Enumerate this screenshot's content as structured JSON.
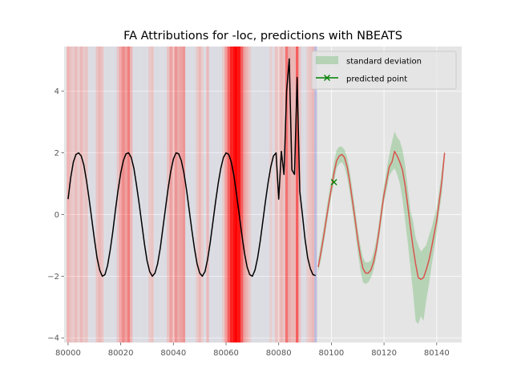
{
  "chart_data": {
    "type": "line",
    "title": "FA Attributions for -loc, predictions with NBEATS",
    "xlabel": "",
    "ylabel": "",
    "xlim": [
      79998.5,
      80149.5
    ],
    "ylim": [
      -4.15,
      5.45
    ],
    "x_ticks": [
      80000,
      80020,
      80040,
      80060,
      80080,
      80100,
      80120,
      80140
    ],
    "x_tick_labels": [
      "80000",
      "80020",
      "80040",
      "80060",
      "80080",
      "80100",
      "80120",
      "80140"
    ],
    "y_ticks": [
      -4,
      -2,
      0,
      2,
      4
    ],
    "y_tick_labels": [
      "−4",
      "−2",
      "0",
      "2",
      "4"
    ],
    "grid": true,
    "legend_position": "top-right",
    "legend": [
      {
        "label": "standard deviation",
        "kind": "patch",
        "color": "#2ca02c"
      },
      {
        "label": "predicted point",
        "kind": "line-marker",
        "color": "#008000"
      }
    ],
    "attribution_bands": [
      {
        "x": 80000,
        "c": "r",
        "a": 0.25
      },
      {
        "x": 80001,
        "c": "r",
        "a": 0.15
      },
      {
        "x": 80002,
        "c": "r",
        "a": 0.12
      },
      {
        "x": 80003,
        "c": "r",
        "a": 0.18
      },
      {
        "x": 80004,
        "c": "r",
        "a": 0.1
      },
      {
        "x": 80005,
        "c": "r",
        "a": 0.2
      },
      {
        "x": 80006,
        "c": "r",
        "a": 0.12
      },
      {
        "x": 80007,
        "c": "r",
        "a": 0.15
      },
      {
        "x": 80008,
        "c": "b",
        "a": 0.05
      },
      {
        "x": 80009,
        "c": "b",
        "a": 0.06
      },
      {
        "x": 80010,
        "c": "b",
        "a": 0.05
      },
      {
        "x": 80011,
        "c": "r",
        "a": 0.15
      },
      {
        "x": 80012,
        "c": "r",
        "a": 0.2
      },
      {
        "x": 80013,
        "c": "r",
        "a": 0.15
      },
      {
        "x": 80014,
        "c": "b",
        "a": 0.05
      },
      {
        "x": 80015,
        "c": "b",
        "a": 0.06
      },
      {
        "x": 80016,
        "c": "b",
        "a": 0.05
      },
      {
        "x": 80017,
        "c": "b",
        "a": 0.05
      },
      {
        "x": 80018,
        "c": "b",
        "a": 0.06
      },
      {
        "x": 80019,
        "c": "r",
        "a": 0.15
      },
      {
        "x": 80020,
        "c": "r",
        "a": 0.3
      },
      {
        "x": 80021,
        "c": "r",
        "a": 0.4
      },
      {
        "x": 80022,
        "c": "r",
        "a": 0.3
      },
      {
        "x": 80023,
        "c": "r",
        "a": 0.45
      },
      {
        "x": 80024,
        "c": "r",
        "a": 0.2
      },
      {
        "x": 80025,
        "c": "b",
        "a": 0.05
      },
      {
        "x": 80026,
        "c": "b",
        "a": 0.06
      },
      {
        "x": 80027,
        "c": "b",
        "a": 0.05
      },
      {
        "x": 80028,
        "c": "b",
        "a": 0.05
      },
      {
        "x": 80029,
        "c": "b",
        "a": 0.06
      },
      {
        "x": 80030,
        "c": "b",
        "a": 0.05
      },
      {
        "x": 80031,
        "c": "r",
        "a": 0.12
      },
      {
        "x": 80032,
        "c": "r",
        "a": 0.15
      },
      {
        "x": 80033,
        "c": "b",
        "a": 0.05
      },
      {
        "x": 80034,
        "c": "b",
        "a": 0.06
      },
      {
        "x": 80035,
        "c": "b",
        "a": 0.05
      },
      {
        "x": 80036,
        "c": "b",
        "a": 0.05
      },
      {
        "x": 80037,
        "c": "b",
        "a": 0.06
      },
      {
        "x": 80038,
        "c": "r",
        "a": 0.15
      },
      {
        "x": 80039,
        "c": "r",
        "a": 0.3
      },
      {
        "x": 80040,
        "c": "r",
        "a": 0.2
      },
      {
        "x": 80041,
        "c": "r",
        "a": 0.35
      },
      {
        "x": 80042,
        "c": "r",
        "a": 0.25
      },
      {
        "x": 80043,
        "c": "r",
        "a": 0.3
      },
      {
        "x": 80044,
        "c": "r",
        "a": 0.35
      },
      {
        "x": 80045,
        "c": "b",
        "a": 0.05
      },
      {
        "x": 80046,
        "c": "b",
        "a": 0.06
      },
      {
        "x": 80047,
        "c": "b",
        "a": 0.05
      },
      {
        "x": 80048,
        "c": "b",
        "a": 0.06
      },
      {
        "x": 80049,
        "c": "r",
        "a": 0.12
      },
      {
        "x": 80050,
        "c": "r",
        "a": 0.2
      },
      {
        "x": 80051,
        "c": "r",
        "a": 0.1
      },
      {
        "x": 80052,
        "c": "b",
        "a": 0.05
      },
      {
        "x": 80053,
        "c": "r",
        "a": 0.2
      },
      {
        "x": 80054,
        "c": "b",
        "a": 0.06
      },
      {
        "x": 80055,
        "c": "b",
        "a": 0.05
      },
      {
        "x": 80056,
        "c": "b",
        "a": 0.06
      },
      {
        "x": 80057,
        "c": "b",
        "a": 0.05
      },
      {
        "x": 80058,
        "c": "b",
        "a": 0.06
      },
      {
        "x": 80059,
        "c": "r",
        "a": 0.12
      },
      {
        "x": 80060,
        "c": "r",
        "a": 0.35
      },
      {
        "x": 80061,
        "c": "r",
        "a": 0.6
      },
      {
        "x": 80062,
        "c": "r",
        "a": 0.85
      },
      {
        "x": 80063,
        "c": "r",
        "a": 0.95
      },
      {
        "x": 80064,
        "c": "r",
        "a": 1.0
      },
      {
        "x": 80065,
        "c": "r",
        "a": 0.9
      },
      {
        "x": 80066,
        "c": "r",
        "a": 0.6
      },
      {
        "x": 80067,
        "c": "r",
        "a": 0.3
      },
      {
        "x": 80068,
        "c": "r",
        "a": 0.2
      },
      {
        "x": 80069,
        "c": "r",
        "a": 0.12
      },
      {
        "x": 80070,
        "c": "b",
        "a": 0.06
      },
      {
        "x": 80071,
        "c": "b",
        "a": 0.05
      },
      {
        "x": 80072,
        "c": "b",
        "a": 0.06
      },
      {
        "x": 80073,
        "c": "b",
        "a": 0.05
      },
      {
        "x": 80074,
        "c": "b",
        "a": 0.05
      },
      {
        "x": 80075,
        "c": "b",
        "a": 0.06
      },
      {
        "x": 80076,
        "c": "b",
        "a": 0.05
      },
      {
        "x": 80077,
        "c": "r",
        "a": 0.1
      },
      {
        "x": 80078,
        "c": "b",
        "a": 0.05
      },
      {
        "x": 80079,
        "c": "r",
        "a": 0.15
      },
      {
        "x": 80080,
        "c": "r",
        "a": 0.12
      },
      {
        "x": 80081,
        "c": "r",
        "a": 0.2
      },
      {
        "x": 80082,
        "c": "r",
        "a": 0.15
      },
      {
        "x": 80083,
        "c": "r",
        "a": 0.5
      },
      {
        "x": 80084,
        "c": "r",
        "a": 0.25
      },
      {
        "x": 80085,
        "c": "r",
        "a": 0.2
      },
      {
        "x": 80086,
        "c": "r",
        "a": 0.2
      },
      {
        "x": 80087,
        "c": "r",
        "a": 0.6
      },
      {
        "x": 80088,
        "c": "r",
        "a": 0.15
      },
      {
        "x": 80089,
        "c": "b",
        "a": 0.06
      },
      {
        "x": 80090,
        "c": "b",
        "a": 0.05
      },
      {
        "x": 80091,
        "c": "r",
        "a": 0.1
      },
      {
        "x": 80092,
        "c": "r",
        "a": 0.15
      },
      {
        "x": 80093,
        "c": "r",
        "a": 0.2
      },
      {
        "x": 80094,
        "c": "b",
        "a": 0.25
      }
    ],
    "series": [
      {
        "name": "",
        "role": "history",
        "color": "#000000",
        "x": [
          80000,
          80001,
          80002,
          80003,
          80004,
          80005,
          80006,
          80007,
          80008,
          80009,
          80010,
          80011,
          80012,
          80013,
          80014,
          80015,
          80016,
          80017,
          80018,
          80019,
          80020,
          80021,
          80022,
          80023,
          80024,
          80025,
          80026,
          80027,
          80028,
          80029,
          80030,
          80031,
          80032,
          80033,
          80034,
          80035,
          80036,
          80037,
          80038,
          80039,
          80040,
          80041,
          80042,
          80043,
          80044,
          80045,
          80046,
          80047,
          80048,
          80049,
          80050,
          80051,
          80052,
          80053,
          80054,
          80055,
          80056,
          80057,
          80058,
          80059,
          80060,
          80061,
          80062,
          80063,
          80064,
          80065,
          80066,
          80067,
          80068,
          80069,
          80070,
          80071,
          80072,
          80073,
          80074,
          80075,
          80076,
          80077,
          80078,
          80079,
          80080,
          80081,
          80082,
          80083,
          80084,
          80085,
          80086,
          80087,
          80088,
          80089,
          80090,
          80091,
          80092,
          80093,
          80094
        ],
        "y": [
          0.5,
          1.2,
          1.7,
          1.95,
          2.0,
          1.9,
          1.6,
          1.1,
          0.5,
          -0.15,
          -0.8,
          -1.4,
          -1.8,
          -2.0,
          -1.95,
          -1.65,
          -1.15,
          -0.55,
          0.15,
          0.8,
          1.35,
          1.75,
          1.97,
          2.0,
          1.85,
          1.5,
          0.95,
          0.35,
          -0.3,
          -0.95,
          -1.5,
          -1.85,
          -2.0,
          -1.9,
          -1.6,
          -1.1,
          -0.45,
          0.2,
          0.85,
          1.4,
          1.8,
          2.0,
          1.97,
          1.75,
          1.35,
          0.8,
          0.15,
          -0.5,
          -1.1,
          -1.6,
          -1.9,
          -2.0,
          -1.85,
          -1.45,
          -0.9,
          -0.25,
          0.4,
          1.0,
          1.5,
          1.85,
          2.0,
          1.95,
          1.7,
          1.25,
          0.65,
          0.0,
          -0.65,
          -1.25,
          -1.7,
          -1.95,
          -2.0,
          -1.8,
          -1.4,
          -0.85,
          -0.2,
          0.45,
          1.05,
          1.55,
          1.9,
          2.0,
          0.5,
          2.05,
          1.3,
          4.0,
          5.05,
          1.45,
          1.3,
          4.45,
          0.75,
          0.0,
          -0.8,
          -1.4,
          -1.75,
          -1.95,
          -1.98
        ]
      },
      {
        "name": "",
        "role": "prediction",
        "color": "#d9544d",
        "x": [
          80095,
          80096,
          80097,
          80098,
          80099,
          80100,
          80101,
          80102,
          80103,
          80104,
          80105,
          80106,
          80107,
          80108,
          80109,
          80110,
          80111,
          80112,
          80113,
          80114,
          80115,
          80116,
          80117,
          80118,
          80119,
          80120,
          80121,
          80122,
          80123,
          80124,
          80125,
          80126,
          80127,
          80128,
          80129,
          80130,
          80131,
          80132,
          80133,
          80134,
          80135,
          80136,
          80137,
          80138,
          80139,
          80140,
          80141,
          80142,
          80143
        ],
        "y": [
          -1.7,
          -1.25,
          -0.75,
          -0.2,
          0.35,
          0.85,
          1.35,
          1.75,
          1.9,
          1.95,
          1.85,
          1.55,
          1.05,
          0.45,
          -0.15,
          -0.8,
          -1.35,
          -1.75,
          -1.9,
          -1.9,
          -1.8,
          -1.55,
          -1.15,
          -0.6,
          0.05,
          0.65,
          1.1,
          1.55,
          1.7,
          2.05,
          1.9,
          1.7,
          1.45,
          0.95,
          0.3,
          -0.4,
          -1.05,
          -1.6,
          -2.05,
          -2.1,
          -2.05,
          -1.8,
          -1.5,
          -1.1,
          -0.65,
          -0.2,
          0.45,
          1.1,
          2.0
        ]
      }
    ],
    "std_band": {
      "x": [
        80095,
        80096,
        80097,
        80098,
        80099,
        80100,
        80101,
        80102,
        80103,
        80104,
        80105,
        80106,
        80107,
        80108,
        80109,
        80110,
        80111,
        80112,
        80113,
        80114,
        80115,
        80116,
        80117,
        80118,
        80119,
        80120,
        80121,
        80122,
        80123,
        80124,
        80125,
        80126,
        80127,
        80128,
        80129,
        80130,
        80131,
        80132,
        80133,
        80134,
        80135,
        80136,
        80137,
        80138,
        80139,
        80140,
        80141,
        80142,
        80143
      ],
      "lower": [
        -1.85,
        -1.5,
        -1.0,
        -0.45,
        0.1,
        0.6,
        1.05,
        1.5,
        1.65,
        1.7,
        1.55,
        1.2,
        0.7,
        0.1,
        -0.5,
        -1.2,
        -1.8,
        -2.2,
        -2.25,
        -2.2,
        -2.05,
        -1.8,
        -1.4,
        -0.85,
        -0.25,
        0.4,
        0.8,
        1.25,
        1.4,
        1.5,
        1.3,
        1.0,
        0.5,
        -0.2,
        -0.9,
        -1.7,
        -2.5,
        -3.45,
        -3.55,
        -3.3,
        -3.45,
        -2.8,
        -2.3,
        -1.7,
        -1.15,
        -0.6,
        0.1,
        0.7,
        1.9
      ],
      "upper": [
        -1.5,
        -0.95,
        -0.45,
        0.1,
        0.65,
        1.15,
        1.7,
        2.1,
        2.2,
        2.2,
        2.1,
        1.85,
        1.4,
        0.8,
        0.2,
        -0.45,
        -1.0,
        -1.4,
        -1.55,
        -1.55,
        -1.5,
        -1.25,
        -0.85,
        -0.3,
        0.35,
        0.95,
        1.45,
        1.95,
        2.35,
        2.7,
        2.5,
        2.4,
        2.1,
        1.6,
        0.9,
        0.15,
        -0.2,
        -0.75,
        -1.0,
        -1.2,
        -1.1,
        -1.0,
        -0.7,
        -0.45,
        -0.1,
        0.2,
        0.8,
        1.5,
        2.1
      ]
    },
    "predicted_point": {
      "x": 80101,
      "y": 1.05
    }
  }
}
